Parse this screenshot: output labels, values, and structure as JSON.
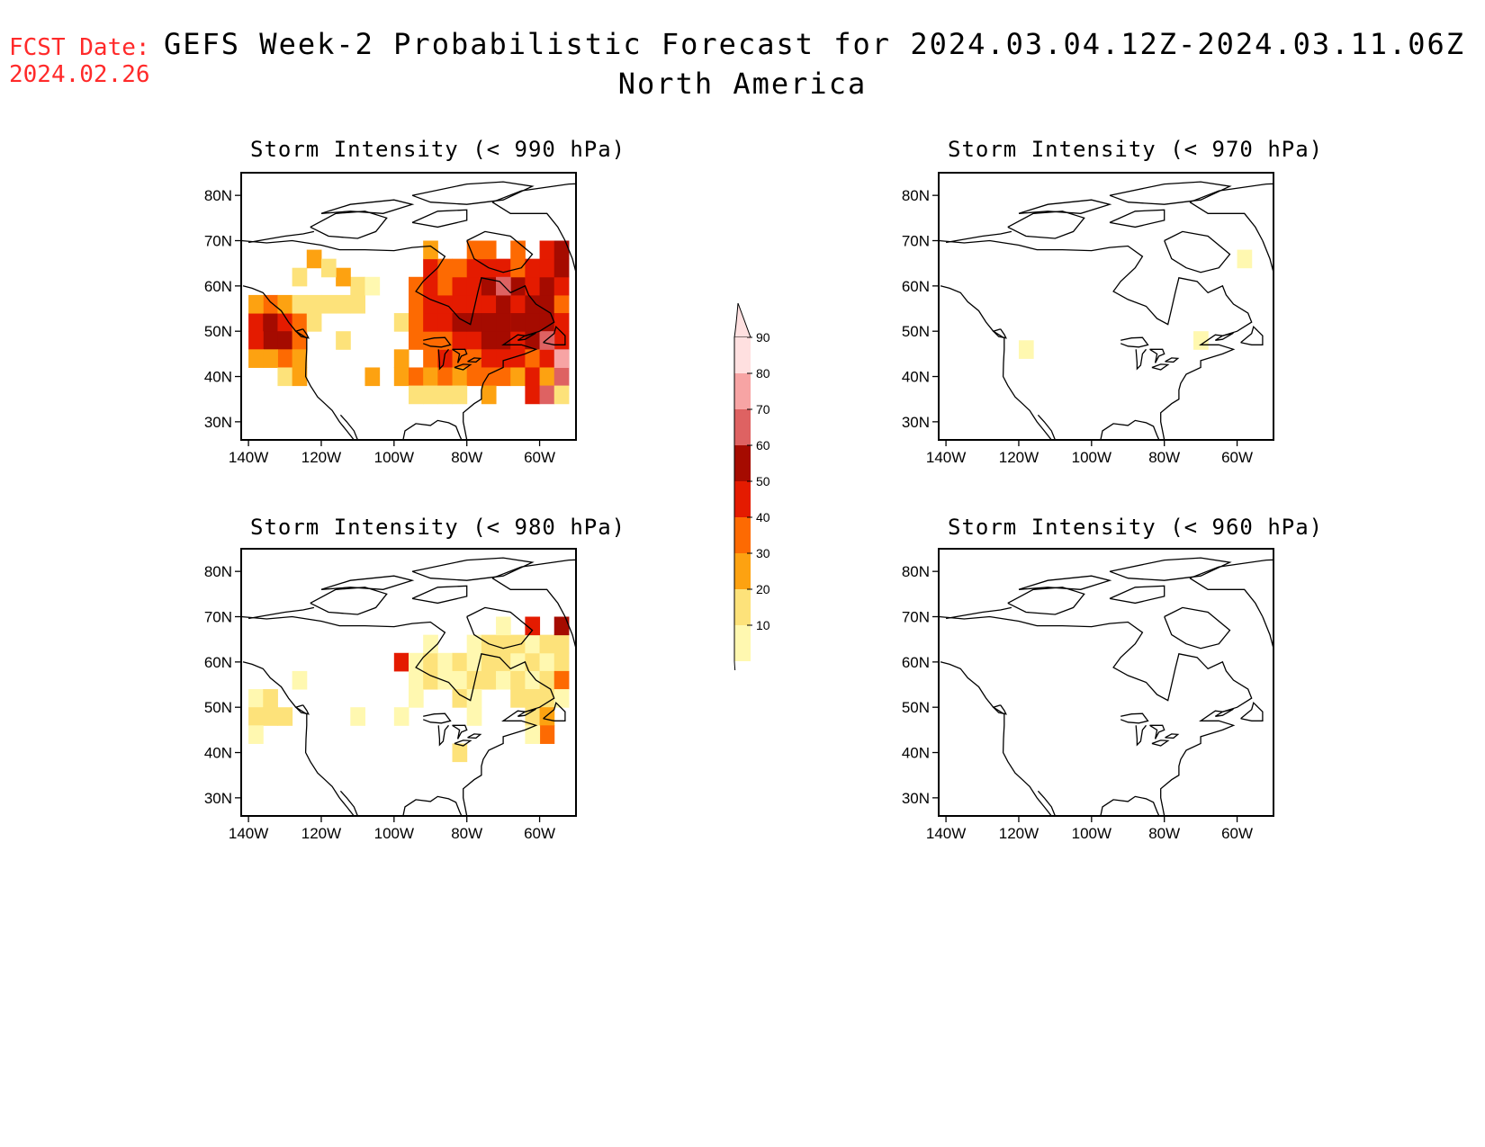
{
  "header": {
    "fcst_label": "FCST Date:",
    "fcst_date": "2024.02.26",
    "title_line1": "GEFS Week-2 Probabilistic Forecast for 2024.03.04.12Z-2024.03.11.06Z",
    "title_line2": "North America"
  },
  "axes": {
    "lat_ticks": [
      "30N",
      "40N",
      "50N",
      "60N",
      "70N",
      "80N"
    ],
    "lon_ticks": [
      "140W",
      "120W",
      "100W",
      "80W",
      "60W"
    ]
  },
  "panels": [
    {
      "id": "p990",
      "title": "Storm Intensity (< 990 hPa)"
    },
    {
      "id": "p970",
      "title": "Storm Intensity (< 970 hPa)"
    },
    {
      "id": "p980",
      "title": "Storm Intensity (< 980 hPa)"
    },
    {
      "id": "p960",
      "title": "Storm Intensity (< 960 hPa)"
    }
  ],
  "colorbar": {
    "levels": [
      "10",
      "20",
      "30",
      "40",
      "50",
      "60",
      "70",
      "80",
      "90"
    ],
    "colors": [
      "#fff8b0",
      "#fde27a",
      "#fda211",
      "#fd6a02",
      "#e41b00",
      "#a50b00",
      "#de6262",
      "#f7a4a4",
      "#ffe0e0"
    ]
  },
  "palette": {
    "fcst_color": "#ff2a2a"
  }
}
